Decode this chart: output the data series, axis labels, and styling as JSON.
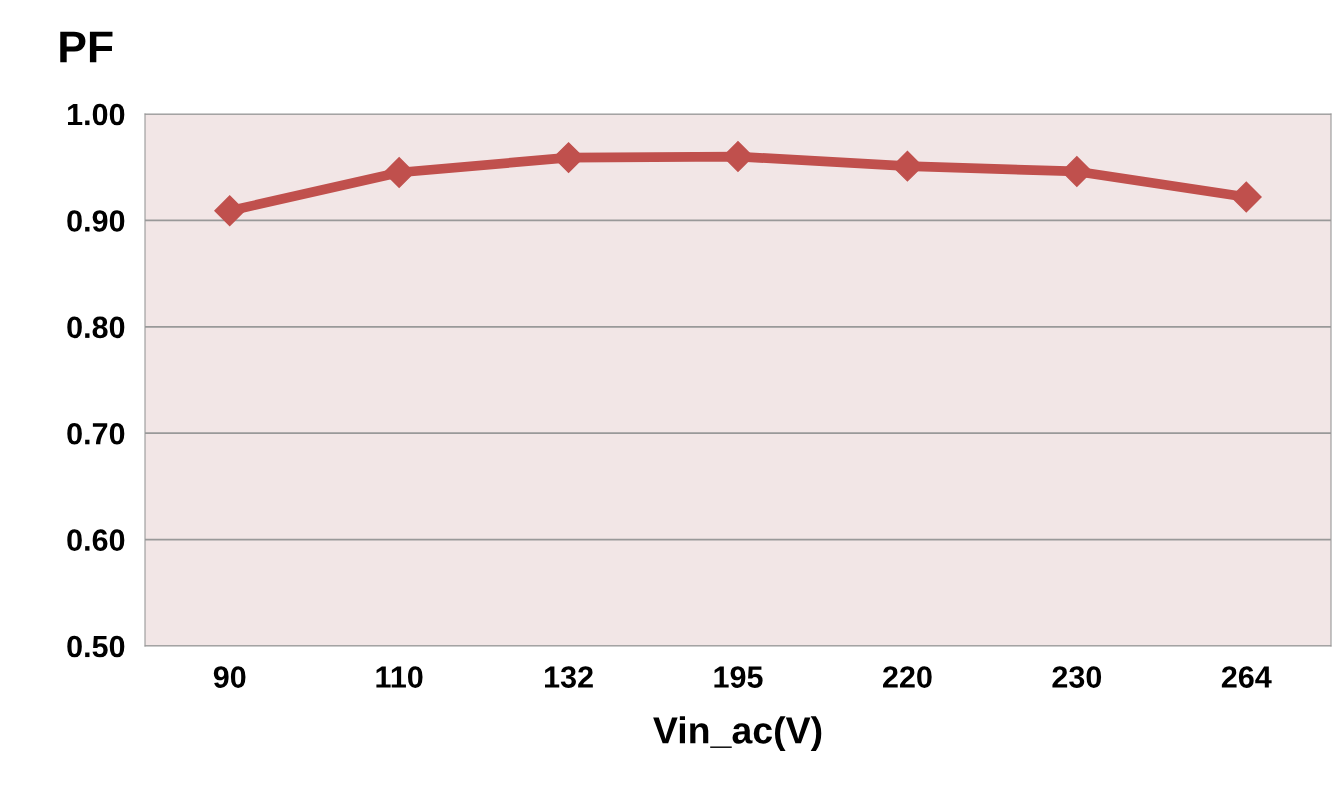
{
  "chart_data": {
    "type": "line",
    "ylabel": "PF",
    "xlabel": "Vin_ac(V)",
    "categories": [
      "90",
      "110",
      "132",
      "195",
      "220",
      "230",
      "264"
    ],
    "series": [
      {
        "color": "#c0504d",
        "values": [
          0.909,
          0.945,
          0.959,
          0.96,
          0.951,
          0.946,
          0.922
        ]
      }
    ],
    "ylim": [
      0.5,
      1.0
    ],
    "yticks": [
      {
        "value": 0.5,
        "label": "0.50"
      },
      {
        "value": 0.6,
        "label": "0.60"
      },
      {
        "value": 0.7,
        "label": "0.70"
      },
      {
        "value": 0.8,
        "label": "0.80"
      },
      {
        "value": 0.9,
        "label": "0.90"
      },
      {
        "value": 1.0,
        "label": "1.00"
      }
    ],
    "grid": "y",
    "marker": "diamond",
    "line_style": "solid",
    "legend": false
  }
}
